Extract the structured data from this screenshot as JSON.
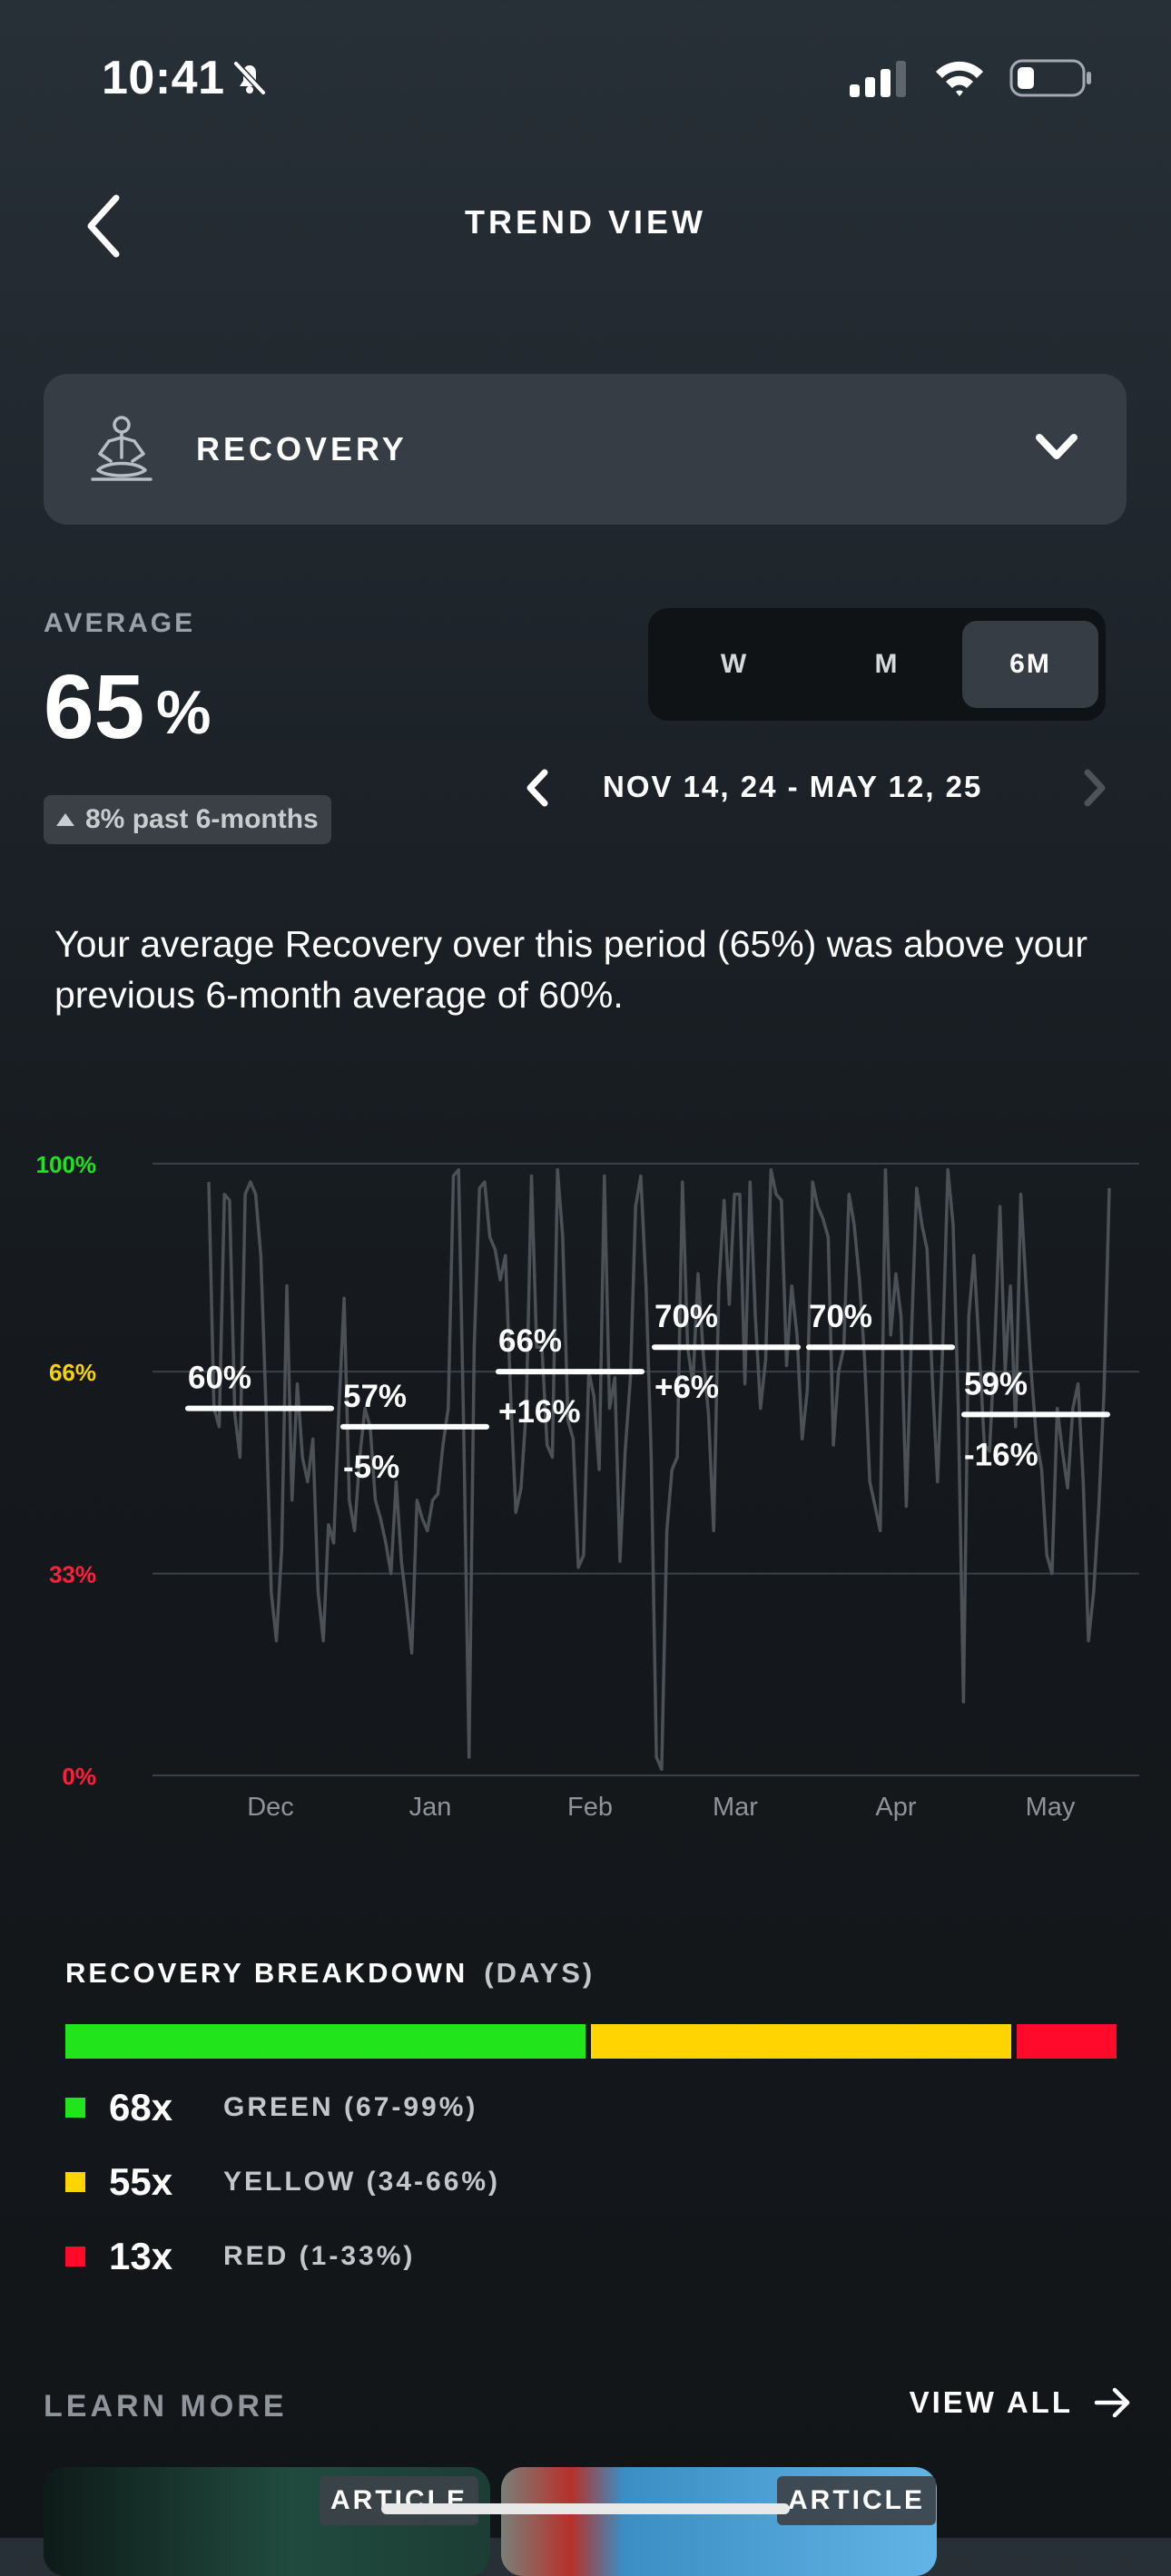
{
  "status_bar": {
    "time": "10:41"
  },
  "header": {
    "title": "TREND VIEW"
  },
  "metric_selector": {
    "label": "RECOVERY"
  },
  "average": {
    "label": "AVERAGE",
    "value": "65",
    "unit": "%",
    "change": "8% past 6-months"
  },
  "range_tabs": [
    {
      "label": "W",
      "active": false
    },
    {
      "label": "M",
      "active": false
    },
    {
      "label": "6M",
      "active": true
    }
  ],
  "date_range": "NOV 14, 24 - MAY 12, 25",
  "summary": "Your average Recovery over this period (65%) was above your previous 6-month average of 60%.",
  "chart_data": {
    "type": "line",
    "y_ticks": [
      {
        "label": "100%",
        "value": 100,
        "color": "#1fe11f"
      },
      {
        "label": "66%",
        "value": 66,
        "color": "#f5d30a"
      },
      {
        "label": "33%",
        "value": 33,
        "color": "#ff1f3a"
      },
      {
        "label": "0%",
        "value": 0,
        "color": "#ff1f3a"
      }
    ],
    "ylim": [
      0,
      100
    ],
    "x_labels": [
      "Dec",
      "Jan",
      "Feb",
      "Mar",
      "Apr",
      "May"
    ],
    "monthly_averages": [
      {
        "avg": 60,
        "avg_label": "60%",
        "change_label": ""
      },
      {
        "avg": 57,
        "avg_label": "57%",
        "change_label": "-5%"
      },
      {
        "avg": 66,
        "avg_label": "66%",
        "change_label": "+16%"
      },
      {
        "avg": 70,
        "avg_label": "70%",
        "change_label": "+6%"
      },
      {
        "avg": 70,
        "avg_label": "70%",
        "change_label": ""
      },
      {
        "avg": 59,
        "avg_label": "59%",
        "change_label": "-16%"
      }
    ],
    "daily_values": [
      97,
      60,
      57,
      95,
      94,
      59,
      52,
      95,
      97,
      95,
      85,
      60,
      30,
      22,
      37,
      80,
      45,
      64,
      52,
      48,
      55,
      30,
      22,
      41,
      38,
      60,
      78,
      45,
      40,
      52,
      60,
      57,
      45,
      42,
      38,
      33,
      48,
      35,
      28,
      20,
      45,
      42,
      40,
      45,
      46,
      54,
      60,
      98,
      99,
      55,
      3,
      70,
      96,
      97,
      88,
      86,
      81,
      85,
      62,
      43,
      47,
      60,
      98,
      70,
      70,
      54,
      52,
      99,
      88,
      58,
      55,
      34,
      36,
      66,
      62,
      50,
      98,
      60,
      65,
      35,
      53,
      65,
      93,
      98,
      80,
      52,
      3,
      1,
      40,
      50,
      52,
      97,
      70,
      64,
      82,
      69,
      59,
      40,
      80,
      94,
      77,
      95,
      95,
      64,
      97,
      75,
      60,
      68,
      99,
      95,
      94,
      67,
      80,
      72,
      55,
      63,
      97,
      93,
      91,
      88,
      54,
      66,
      70,
      95,
      90,
      81,
      68,
      48,
      44,
      40,
      99,
      72,
      82,
      75,
      44,
      72,
      96,
      90,
      86,
      65,
      48,
      70,
      99,
      90,
      60,
      12,
      75,
      85,
      70,
      54,
      53,
      70,
      93,
      66,
      80,
      57,
      95,
      80,
      66,
      55,
      50,
      36,
      33,
      60,
      53,
      47,
      60,
      64,
      48,
      22,
      30,
      44,
      63,
      96
    ]
  },
  "breakdown": {
    "title": "RECOVERY BREAKDOWN",
    "subtitle": "(DAYS)",
    "items": [
      {
        "count": 68,
        "count_label": "68x",
        "label": "GREEN (67-99%)",
        "color": "#21e41a"
      },
      {
        "count": 55,
        "count_label": "55x",
        "label": "YELLOW (34-66%)",
        "color": "#ffd400"
      },
      {
        "count": 13,
        "count_label": "13x",
        "label": "RED (1-33%)",
        "color": "#ff0a2a"
      }
    ]
  },
  "learn_more": {
    "title": "LEARN MORE",
    "view_all": "VIEW ALL",
    "cards": [
      {
        "tag": "ARTICLE"
      },
      {
        "tag": "ARTICLE"
      }
    ]
  }
}
